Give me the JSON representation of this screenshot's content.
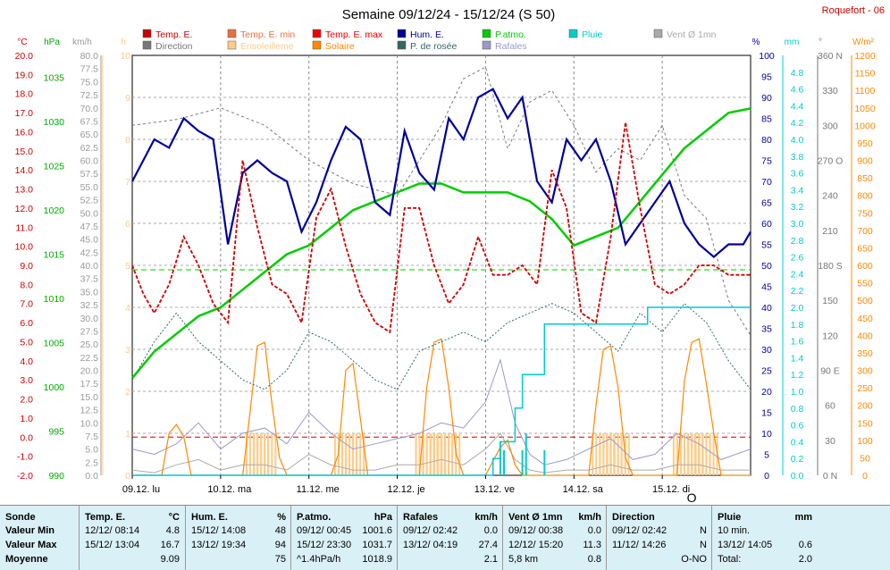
{
  "header": {
    "title": "Semaine 09/12/24 - 15/12/24 (S 50)",
    "station": "Roquefort - 06"
  },
  "legend": [
    {
      "label": "Temp. E.",
      "color": "#cc0000"
    },
    {
      "label": "Temp. E. min",
      "color": "#e87040"
    },
    {
      "label": "Temp. E. max",
      "color": "#ee0000"
    },
    {
      "label": "Hum. E.",
      "color": "#000099"
    },
    {
      "label": "P.atmo.",
      "color": "#00cc00"
    },
    {
      "label": "Pluie",
      "color": "#00cccc"
    },
    {
      "label": "Vent Ø 1mn",
      "color": "#aaaaaa"
    },
    {
      "label": "Direction",
      "color": "#777777"
    },
    {
      "label": "Ensoleilleme",
      "color": "#ffcc88"
    },
    {
      "label": "Solaire",
      "color": "#ff8800"
    },
    {
      "label": "P. de rosée",
      "color": "#336666"
    },
    {
      "label": "Rafales",
      "color": "#9999cc"
    }
  ],
  "axes": {
    "temp": {
      "unit": "°C",
      "color": "#cc0000",
      "ticks": [
        "20.0",
        "19.0",
        "18.0",
        "17.0",
        "16.0",
        "15.0",
        "14.0",
        "13.0",
        "12.0",
        "11.0",
        "10.0",
        "9.0",
        "8.0",
        "7.0",
        "6.0",
        "5.0",
        "4.0",
        "3.0",
        "2.0",
        "1.0",
        "0.0",
        "-1.0",
        "-2.0"
      ]
    },
    "press": {
      "unit": "hPa",
      "color": "#00aa00",
      "ticks": [
        "1035",
        "1030",
        "1025",
        "1020",
        "1015",
        "1010",
        "1005",
        "1000",
        "995",
        "990"
      ]
    },
    "wind": {
      "unit": "km/h",
      "color": "#999999",
      "ticks": [
        "80.0",
        "77.5",
        "75.0",
        "72.5",
        "70.0",
        "67.5",
        "65.0",
        "62.5",
        "60.0",
        "57.5",
        "55.0",
        "52.5",
        "50.0",
        "47.5",
        "45.0",
        "42.5",
        "40.0",
        "37.5",
        "35.0",
        "32.5",
        "30.0",
        "27.5",
        "25.0",
        "22.5",
        "20.0",
        "17.5",
        "15.0",
        "12.5",
        "10.0",
        "7.5",
        "5.0",
        "2.5",
        "0.0"
      ]
    },
    "sun": {
      "unit": "h",
      "color": "#ffcc88",
      "ticks": [
        "10",
        "9",
        "8",
        "7",
        "6",
        "5",
        "4",
        "3",
        "2",
        "1",
        "0"
      ]
    },
    "hum": {
      "unit": "%",
      "color": "#000099",
      "ticks": [
        "100",
        "95",
        "90",
        "85",
        "80",
        "75",
        "70",
        "65",
        "60",
        "55",
        "50",
        "45",
        "40",
        "35",
        "30",
        "25",
        "20",
        "15",
        "10",
        "5",
        "0"
      ]
    },
    "rain": {
      "unit": "mm",
      "color": "#00cccc",
      "ticks": [
        "4.8",
        "4.6",
        "4.4",
        "4.2",
        "4.0",
        "3.8",
        "3.6",
        "3.4",
        "3.2",
        "3.0",
        "2.8",
        "2.6",
        "2.4",
        "2.2",
        "2.0",
        "1.8",
        "1.6",
        "1.4",
        "1.2",
        "1.0",
        "0.8",
        "0.6",
        "0.4",
        "0.2",
        "0.0"
      ]
    },
    "dir": {
      "unit": "°",
      "color": "#777777",
      "ticks": [
        "360 N",
        "330",
        "300",
        "270 O",
        "240",
        "210",
        "180 S",
        "150",
        "120",
        "90 E",
        "60",
        "30",
        "0 N"
      ]
    },
    "solar": {
      "unit": "W/m²",
      "color": "#ff8800",
      "ticks": [
        "1200",
        "1150",
        "1100",
        "1050",
        "1000",
        "950",
        "900",
        "850",
        "800",
        "750",
        "700",
        "650",
        "600",
        "550",
        "500",
        "450",
        "400",
        "350",
        "300",
        "250",
        "200",
        "150",
        "100",
        "50",
        "0"
      ]
    },
    "days": [
      "09.12.  lu",
      "10.12.  ma",
      "11.12.  me",
      "12.12.  je",
      "13.12.  ve",
      "14.12.  sa",
      "15.12.  di"
    ],
    "now_marker": "O"
  },
  "chart_data": {
    "type": "line",
    "x_domain": [
      "2024-12-09 00:00",
      "2024-12-16 00:00"
    ],
    "series": [
      {
        "name": "Temp. E.",
        "axis": "temp",
        "color": "#cc0000",
        "x": [
          0,
          3,
          6,
          10,
          14,
          18,
          22,
          26,
          30,
          34,
          38,
          42,
          46,
          50,
          54,
          58,
          62,
          66,
          70,
          74,
          78,
          82,
          86,
          90,
          94,
          98,
          102,
          106,
          110,
          114,
          118,
          122,
          126,
          130,
          134,
          138,
          142,
          146,
          150,
          154,
          158,
          162,
          166,
          168
        ],
        "y": [
          9.0,
          7.5,
          6.5,
          8.0,
          10.5,
          9.0,
          7.0,
          6.0,
          14.5,
          11.0,
          8.0,
          7.5,
          6.0,
          11.5,
          13.0,
          10.0,
          7.5,
          6.0,
          5.5,
          12.0,
          12.0,
          9.0,
          7.0,
          8.0,
          10.5,
          8.5,
          8.5,
          9.0,
          8.0,
          14.0,
          12.0,
          6.5,
          6.0,
          10.5,
          16.5,
          12.0,
          8.0,
          7.5,
          8.0,
          9.0,
          9.0,
          8.5,
          8.5,
          8.5
        ]
      },
      {
        "name": "Hum. E.",
        "axis": "hum",
        "color": "#000099",
        "x": [
          0,
          3,
          6,
          10,
          14,
          18,
          22,
          26,
          30,
          34,
          38,
          42,
          46,
          50,
          54,
          58,
          62,
          66,
          70,
          74,
          78,
          82,
          86,
          90,
          94,
          98,
          102,
          106,
          110,
          114,
          118,
          122,
          126,
          130,
          134,
          138,
          142,
          146,
          150,
          154,
          158,
          162,
          166,
          168
        ],
        "y": [
          70,
          75,
          80,
          78,
          85,
          82,
          80,
          55,
          72,
          75,
          72,
          70,
          58,
          65,
          75,
          83,
          80,
          65,
          62,
          82,
          72,
          68,
          85,
          80,
          90,
          92,
          85,
          90,
          70,
          65,
          80,
          75,
          80,
          70,
          55,
          60,
          65,
          70,
          60,
          55,
          52,
          55,
          55,
          58
        ]
      },
      {
        "name": "P.atmo.",
        "axis": "press",
        "color": "#00cc00",
        "x": [
          0,
          6,
          12,
          18,
          24,
          30,
          36,
          42,
          48,
          54,
          60,
          66,
          72,
          78,
          84,
          90,
          96,
          102,
          108,
          114,
          120,
          126,
          132,
          138,
          144,
          150,
          156,
          162,
          168
        ],
        "y": [
          1001,
          1004,
          1006,
          1008,
          1009,
          1011,
          1013,
          1015,
          1016,
          1018,
          1020,
          1021,
          1022,
          1023,
          1023,
          1022,
          1022,
          1022,
          1021,
          1019,
          1016,
          1017,
          1018,
          1021,
          1024,
          1027,
          1029,
          1031,
          1031.5
        ]
      },
      {
        "name": "Pluie",
        "axis": "rain",
        "color": "#00cccc",
        "x": [
          0,
          96,
          98,
          100,
          104,
          106,
          112,
          124,
          140,
          168
        ],
        "y": [
          0,
          0,
          0.2,
          0.4,
          0.8,
          1.2,
          1.8,
          1.8,
          2.0,
          2.0
        ]
      },
      {
        "name": "P. de rosée",
        "axis": "temp",
        "color": "#336666",
        "x": [
          0,
          6,
          12,
          18,
          24,
          30,
          36,
          42,
          48,
          54,
          60,
          66,
          72,
          78,
          84,
          90,
          96,
          102,
          108,
          114,
          120,
          126,
          132,
          138,
          144,
          150,
          156,
          162,
          168
        ],
        "y": [
          3.0,
          5.0,
          6.5,
          5.0,
          4.0,
          3.0,
          2.5,
          3.5,
          5.5,
          5.0,
          4.0,
          3.0,
          2.5,
          4.5,
          5.0,
          5.5,
          5.0,
          6.0,
          6.5,
          7.0,
          6.5,
          5.5,
          4.5,
          6.5,
          5.5,
          7.0,
          6.0,
          4.0,
          2.5
        ]
      },
      {
        "name": "Solaire",
        "axis": "solar",
        "color": "#ff8800",
        "x": [
          0,
          8,
          10,
          12,
          14,
          16,
          18,
          24,
          30,
          32,
          34,
          36,
          38,
          40,
          42,
          44,
          48,
          54,
          56,
          58,
          60,
          62,
          64,
          66,
          68,
          70,
          72,
          78,
          80,
          82,
          84,
          86,
          88,
          90,
          96,
          100,
          102,
          104,
          106,
          108,
          114,
          124,
          126,
          128,
          130,
          132,
          134,
          136,
          138,
          144,
          148,
          150,
          152,
          154,
          156,
          158,
          160,
          162,
          168
        ],
        "y": [
          0,
          0,
          120,
          145,
          110,
          0,
          0,
          0,
          0,
          180,
          370,
          380,
          200,
          50,
          0,
          0,
          0,
          0,
          60,
          300,
          320,
          160,
          0,
          0,
          0,
          0,
          0,
          0,
          250,
          380,
          390,
          250,
          60,
          0,
          0,
          80,
          100,
          30,
          0,
          0,
          0,
          0,
          200,
          360,
          370,
          250,
          50,
          0,
          0,
          0,
          0,
          270,
          380,
          390,
          260,
          120,
          0,
          0,
          0
        ]
      },
      {
        "name": "Rafales",
        "axis": "wind",
        "color": "#9999cc",
        "x": [
          0,
          6,
          12,
          18,
          24,
          30,
          36,
          42,
          48,
          54,
          60,
          66,
          72,
          78,
          84,
          90,
          96,
          100,
          104,
          108,
          112,
          118,
          124,
          130,
          136,
          142,
          148,
          154,
          160,
          168
        ],
        "y": [
          5,
          4,
          6,
          10,
          5,
          8,
          9,
          6,
          12,
          8,
          5,
          6,
          7,
          8,
          10,
          9,
          14,
          22,
          10,
          4,
          2,
          3,
          5,
          7,
          3,
          4,
          8,
          6,
          3,
          5
        ]
      },
      {
        "name": "Vent Ø 1mn",
        "axis": "wind",
        "color": "#aaaaaa",
        "x": [
          0,
          6,
          12,
          18,
          24,
          30,
          36,
          42,
          48,
          54,
          60,
          66,
          72,
          78,
          84,
          90,
          96,
          100,
          104,
          108,
          112,
          118,
          124,
          130,
          136,
          142,
          148,
          154,
          160,
          168
        ],
        "y": [
          1,
          0.5,
          2,
          3,
          1,
          2,
          2,
          1,
          4,
          2,
          1,
          1,
          2,
          2,
          3,
          2,
          5,
          8,
          3,
          1,
          0.5,
          1,
          1,
          2,
          1,
          1,
          2,
          2,
          1,
          1
        ]
      },
      {
        "name": "Direction",
        "axis": "dir",
        "color": "#777777",
        "x": [
          0,
          12,
          24,
          36,
          48,
          60,
          72,
          84,
          90,
          96,
          102,
          108,
          114,
          120,
          126,
          132,
          138,
          144,
          150,
          156,
          162,
          168
        ],
        "y": [
          300,
          305,
          315,
          300,
          270,
          250,
          240,
          300,
          340,
          350,
          280,
          320,
          330,
          300,
          260,
          280,
          270,
          300,
          240,
          220,
          150,
          120
        ]
      }
    ],
    "reference_lines": [
      {
        "axis": "temp",
        "value": 0.0,
        "color": "#cc0000"
      },
      {
        "axis": "press",
        "value": 1013.25,
        "color": "#00cc00"
      }
    ]
  },
  "stats": {
    "rows_label": [
      "Sonde",
      "Valeur Min",
      "Valeur Max",
      "Moyenne"
    ],
    "columns": [
      {
        "title": "Temp. E.",
        "unit": "°C",
        "min": [
          "12/12/ 08:14",
          "4.8"
        ],
        "max": [
          "15/12/ 13:04",
          "16.7"
        ],
        "avg": [
          "",
          "9.09"
        ]
      },
      {
        "title": "Hum. E.",
        "unit": "%",
        "min": [
          "15/12/ 14:08",
          "48"
        ],
        "max": [
          "13/12/ 19:34",
          "94"
        ],
        "avg": [
          "",
          "75"
        ]
      },
      {
        "title": "P.atmo.",
        "unit": "hPa",
        "min": [
          "09/12/ 00:45",
          "1001.6"
        ],
        "max": [
          "15/12/ 23:30",
          "1031.7"
        ],
        "avg": [
          "^1.4hPa/h",
          "1018.9"
        ]
      },
      {
        "title": "Rafales",
        "unit": "km/h",
        "min": [
          "09/12/ 02:42",
          "0.0"
        ],
        "max": [
          "13/12/ 04:19",
          "27.4"
        ],
        "avg": [
          "",
          "2.1"
        ]
      },
      {
        "title": "Vent Ø 1mn",
        "unit": "km/h",
        "min": [
          "09/12/ 00:38",
          "0.0"
        ],
        "max": [
          "12/12/ 15:20",
          "11.3"
        ],
        "avg": [
          "5,8 km",
          "0.8"
        ]
      },
      {
        "title": "Direction",
        "unit": "",
        "min": [
          "09/12/ 02:42",
          "N"
        ],
        "max": [
          "11/12/ 14:26",
          "N"
        ],
        "avg": [
          "",
          "O-NO"
        ]
      },
      {
        "title": "Pluie",
        "unit": "mm",
        "min": [
          "10 min.",
          ""
        ],
        "max": [
          "13/12/ 14:05",
          "0.6"
        ],
        "avg": [
          "Total:",
          "2.0"
        ]
      }
    ]
  }
}
